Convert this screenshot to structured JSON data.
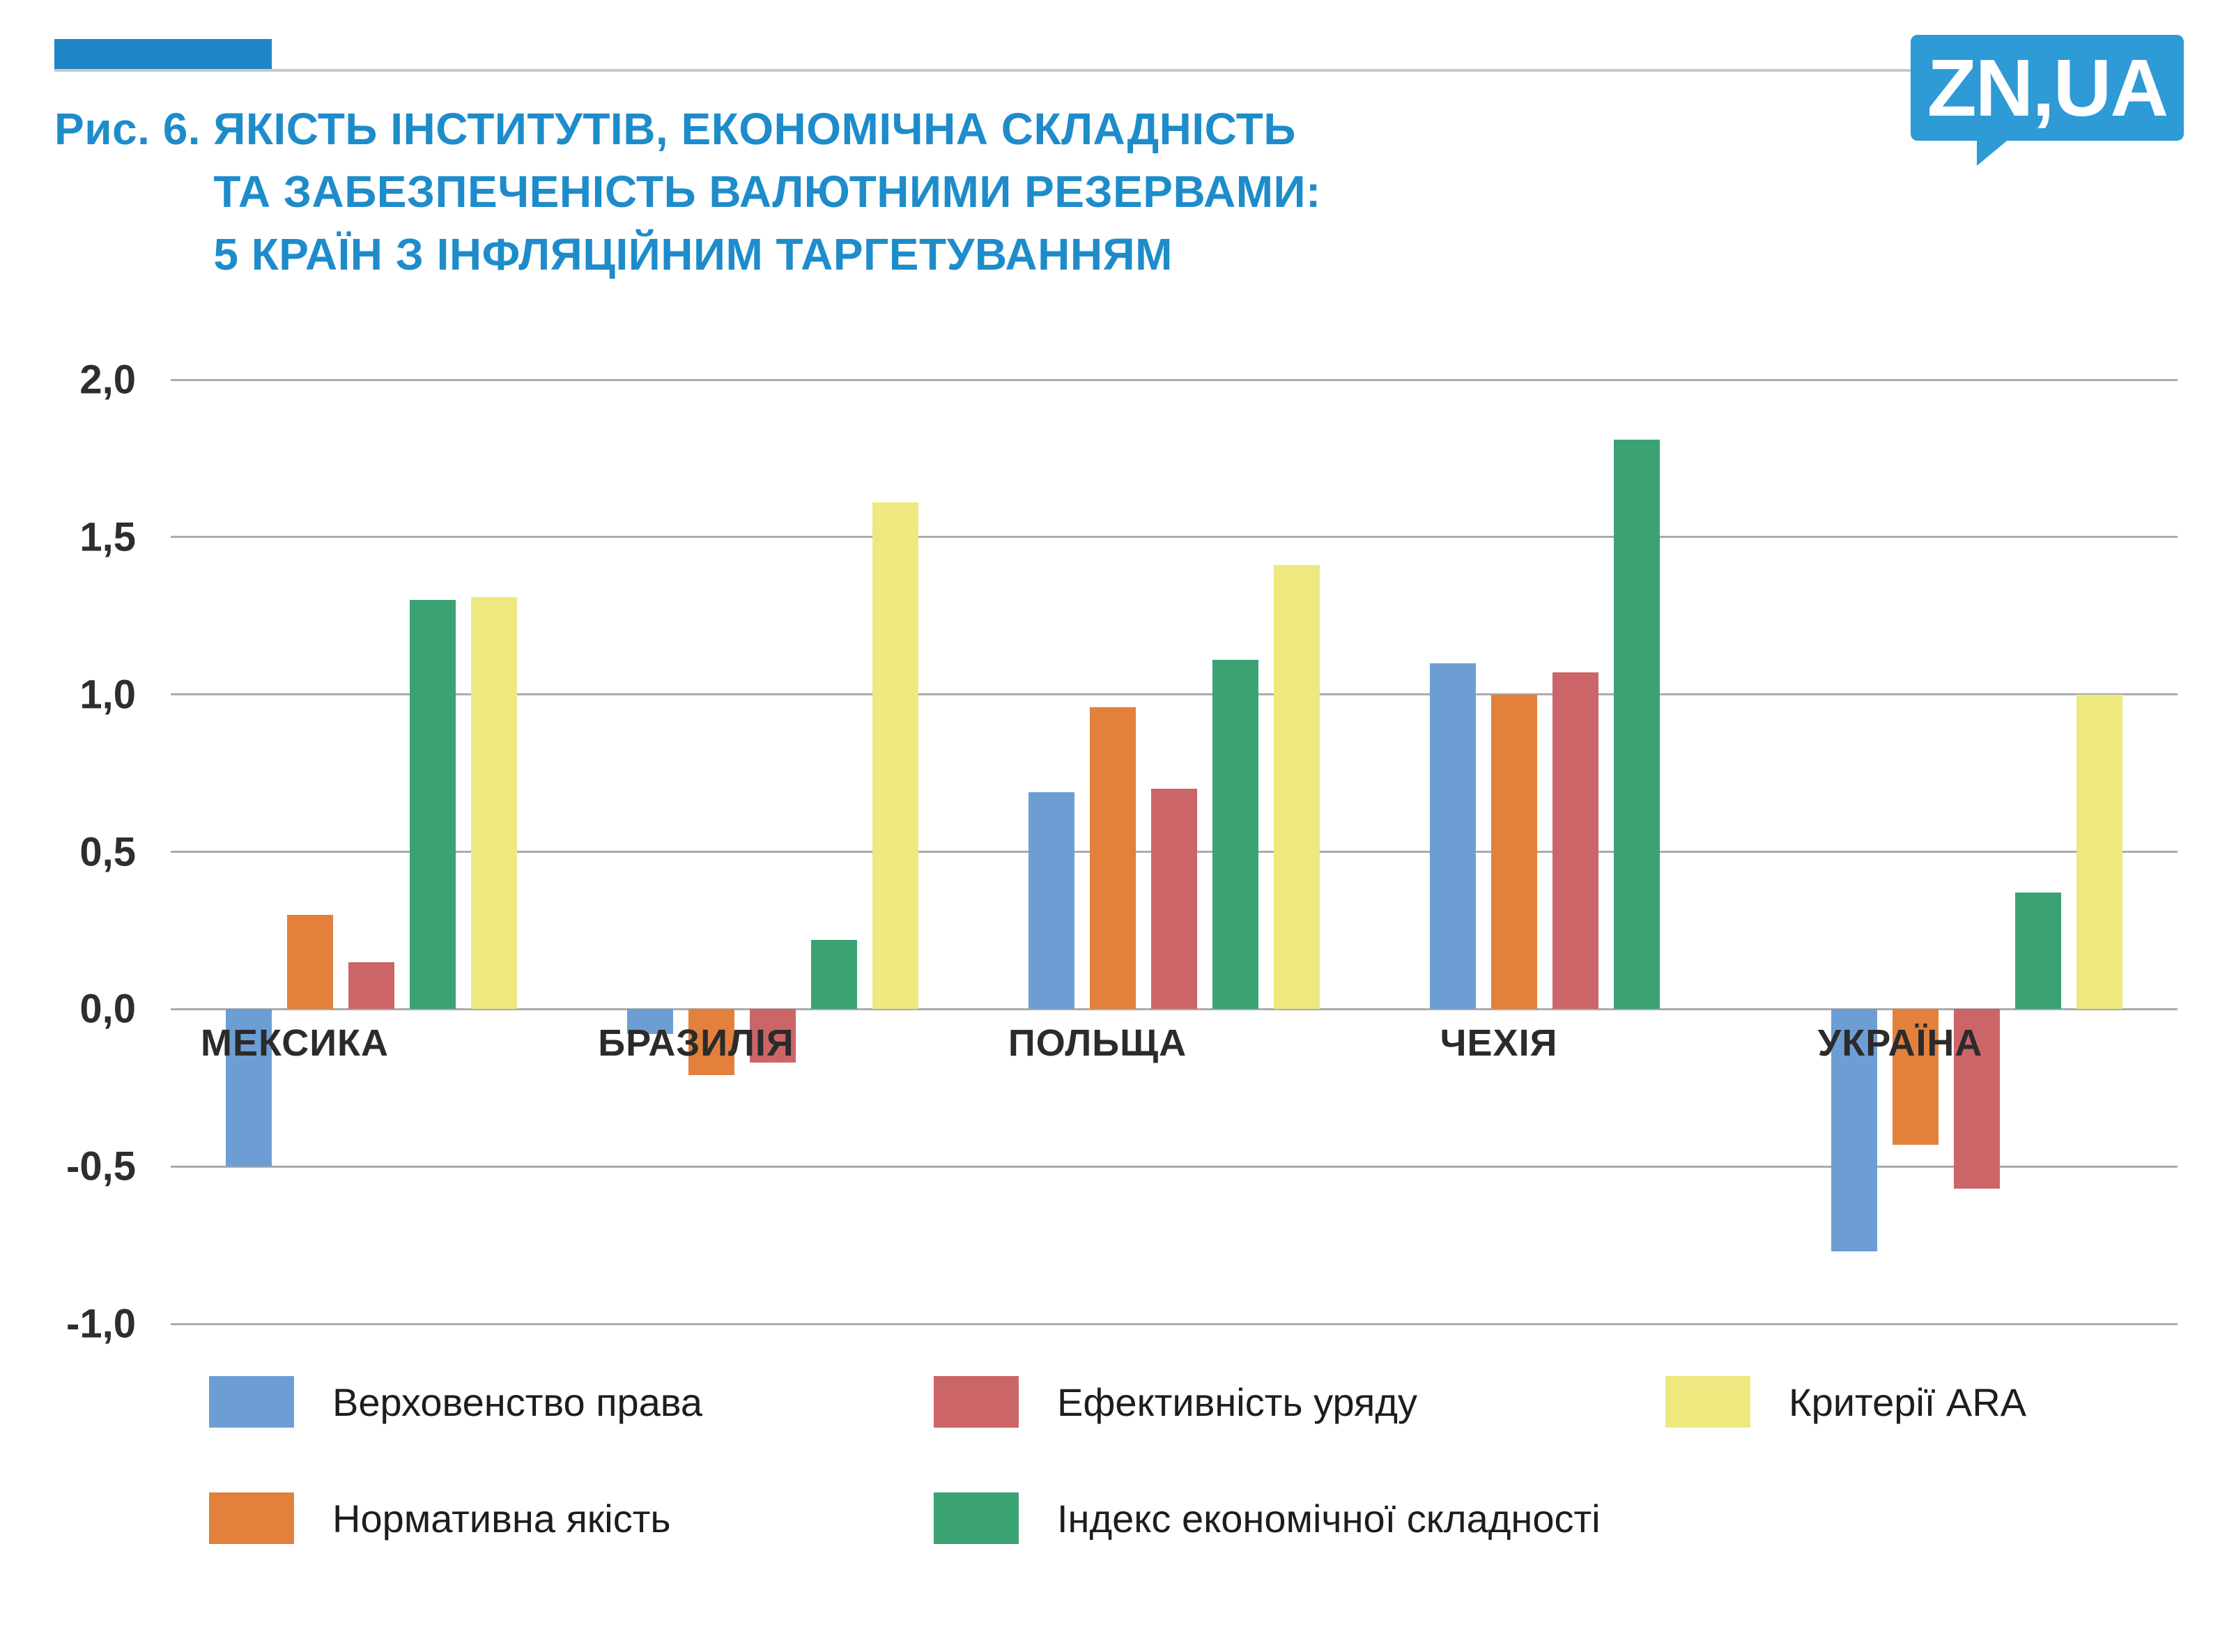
{
  "header": {
    "figure_label": "Рис. 6. ",
    "title_lines": [
      "ЯКІСТЬ ІНСТИТУТІВ, ЕКОНОМІЧНА СКЛАДНІСТЬ",
      "ТА ЗАБЕЗПЕЧЕНІСТЬ ВАЛЮТНИМИ РЕЗЕРВАМИ:",
      "5 КРАЇН З ІНФЛЯЦІЙНИМ ТАРГЕТУВАННЯМ"
    ],
    "logo_text": "ZN,UA",
    "colors": {
      "title": "#1E8CCA",
      "accent_bar": "#1E86C7",
      "logo_bg": "#2E9AD6",
      "divider": "#C9C9C9"
    }
  },
  "chart_data": {
    "type": "bar",
    "title": "Якість інститутів, економічна складність та забезпеченість валютними резервами: 5 країн з інфляційним таргетуванням",
    "categories": [
      "МЕКСИКА",
      "БРАЗИЛІЯ",
      "ПОЛЬЩА",
      "ЧЕХІЯ",
      "УКРАЇНА"
    ],
    "series": [
      {
        "name": "Верховенство права",
        "color": "#6D9ED3",
        "values": [
          -0.5,
          -0.08,
          0.69,
          1.1,
          -0.77
        ]
      },
      {
        "name": "Нормативна якість",
        "color": "#E2803C",
        "values": [
          0.3,
          -0.21,
          0.96,
          1.0,
          -0.43
        ]
      },
      {
        "name": "Ефективність уряду",
        "color": "#CB6567",
        "values": [
          0.15,
          -0.17,
          0.7,
          1.07,
          -0.57
        ]
      },
      {
        "name": "Індекс економічної складності",
        "color": "#3BA273",
        "values": [
          1.3,
          0.22,
          1.11,
          1.81,
          0.37
        ]
      },
      {
        "name": "Критерії ARA",
        "color": "#EDE97F",
        "values": [
          1.31,
          1.61,
          1.41,
          null,
          1.0
        ]
      }
    ],
    "ylim": [
      -1.0,
      2.0
    ],
    "ytick_step": 0.5,
    "ytick_labels": [
      "2,0",
      "1,5",
      "1,0",
      "0,5",
      "0,0",
      "-0,5",
      "-1,0"
    ],
    "grid": true,
    "gridline_color": "#ABABAB",
    "legend_position": "bottom"
  },
  "legend": {
    "rows": [
      [
        0,
        2,
        4
      ],
      [
        1,
        3
      ]
    ]
  }
}
